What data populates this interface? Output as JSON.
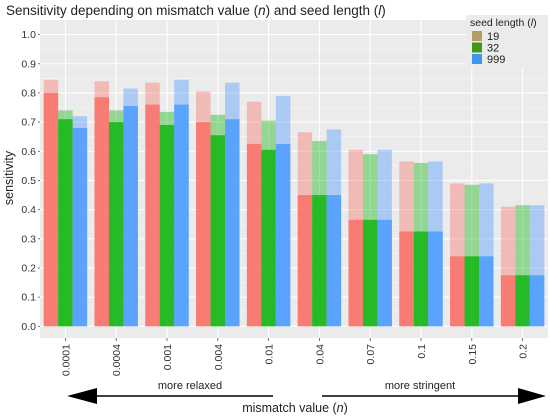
{
  "chart_data": {
    "type": "bar",
    "title_parts": [
      {
        "text": "Sensitivity depending on mismatch value (",
        "italic": false
      },
      {
        "text": "n",
        "italic": true
      },
      {
        "text": ") and seed length (",
        "italic": false
      },
      {
        "text": "l",
        "italic": true
      },
      {
        "text": ")",
        "italic": false
      }
    ],
    "xlabel_parts": [
      {
        "text": "mismatch value (",
        "italic": false
      },
      {
        "text": "n",
        "italic": true
      },
      {
        "text": ")",
        "italic": false
      }
    ],
    "ylabel": "sensitivity",
    "ylim": [
      -0.04,
      1.05
    ],
    "yticks": [
      "0.0",
      "0.1",
      "0.2",
      "0.3",
      "0.4",
      "0.5",
      "0.6",
      "0.7",
      "0.8",
      "0.9",
      "1.0"
    ],
    "grid": true,
    "legend_placement": "top-right",
    "legend_title_parts": [
      {
        "text": "seed length (",
        "italic": false
      },
      {
        "text": "l",
        "italic": true
      },
      {
        "text": ")",
        "italic": false
      }
    ],
    "categories": [
      "0.0001",
      "0.0004",
      "0.001",
      "0.004",
      "0.01",
      "0.04",
      "0.07",
      "0.1",
      "0.15",
      "0.2"
    ],
    "series": [
      {
        "name": "19",
        "color": "#b59a6a",
        "bar_color": "#f8766d",
        "values": [
          0.8,
          0.785,
          0.76,
          0.7,
          0.625,
          0.45,
          0.365,
          0.325,
          0.24,
          0.175
        ],
        "upper": [
          0.845,
          0.84,
          0.835,
          0.805,
          0.77,
          0.665,
          0.605,
          0.565,
          0.49,
          0.41
        ]
      },
      {
        "name": "32",
        "color": "#3f9a1a",
        "bar_color": "#1bb81b",
        "values": [
          0.71,
          0.7,
          0.69,
          0.655,
          0.605,
          0.45,
          0.365,
          0.325,
          0.24,
          0.175
        ],
        "upper": [
          0.74,
          0.74,
          0.735,
          0.725,
          0.705,
          0.635,
          0.59,
          0.56,
          0.485,
          0.415
        ]
      },
      {
        "name": "999",
        "color": "#3d97f0",
        "bar_color": "#519eff",
        "values": [
          0.68,
          0.755,
          0.76,
          0.71,
          0.625,
          0.45,
          0.365,
          0.325,
          0.24,
          0.175
        ],
        "upper": [
          0.72,
          0.815,
          0.845,
          0.835,
          0.79,
          0.675,
          0.605,
          0.565,
          0.49,
          0.415
        ]
      }
    ],
    "direction_labels": {
      "left": "more relaxed",
      "right": "more stringent"
    }
  }
}
